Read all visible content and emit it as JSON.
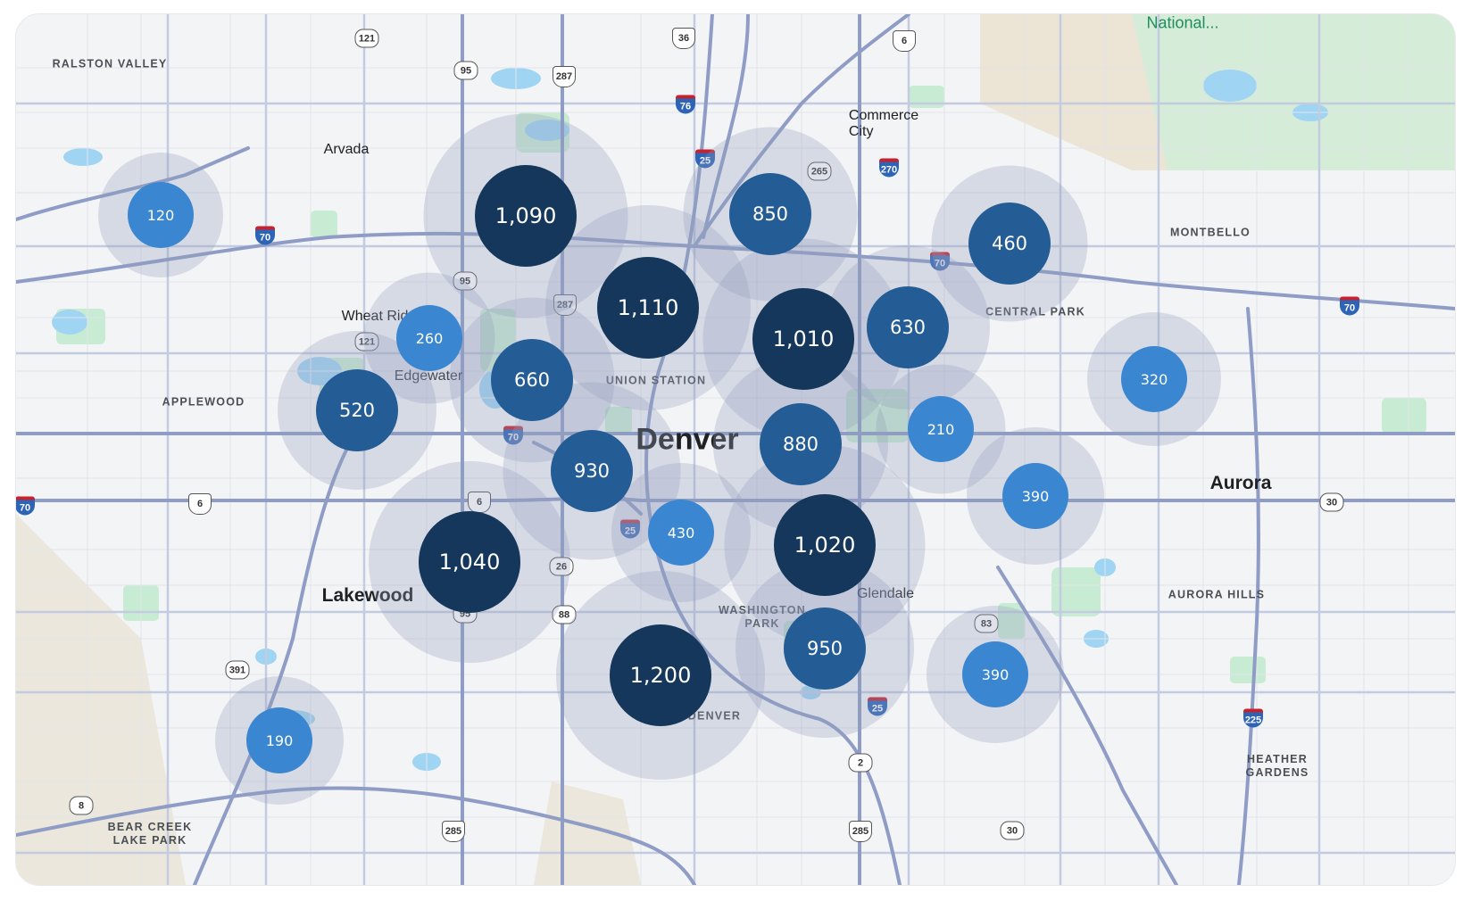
{
  "colors": {
    "cluster_small": "#3a86d1",
    "cluster_medium": "#245c95",
    "cluster_large": "#14375b",
    "halo": "rgba(148,160,190,0.30)",
    "park": "#c7ebd3",
    "water": "#9fd4f2",
    "road": "#9aa8cc",
    "background": "#f3f4f6"
  },
  "clusters": [
    {
      "label": "120",
      "value": 120
    },
    {
      "label": "1,090",
      "value": 1090
    },
    {
      "label": "850",
      "value": 850
    },
    {
      "label": "460",
      "value": 460
    },
    {
      "label": "1,110",
      "value": 1110
    },
    {
      "label": "1,010",
      "value": 1010
    },
    {
      "label": "630",
      "value": 630
    },
    {
      "label": "260",
      "value": 260
    },
    {
      "label": "660",
      "value": 660
    },
    {
      "label": "520",
      "value": 520
    },
    {
      "label": "320",
      "value": 320
    },
    {
      "label": "880",
      "value": 880
    },
    {
      "label": "210",
      "value": 210
    },
    {
      "label": "930",
      "value": 930
    },
    {
      "label": "390",
      "value": 390
    },
    {
      "label": "430",
      "value": 430
    },
    {
      "label": "1,020",
      "value": 1020
    },
    {
      "label": "1,040",
      "value": 1040
    },
    {
      "label": "950",
      "value": 950
    },
    {
      "label": "1,200",
      "value": 1200
    },
    {
      "label": "390",
      "value": 390
    },
    {
      "label": "190",
      "value": 190
    }
  ],
  "places": {
    "denver": "Denver",
    "ralston_valley": "RALSTON VALLEY",
    "arvada": "Arvada",
    "commerce_city": "Commerce\nCity",
    "national": "National...",
    "montbello": "MONTBELLO",
    "central_park": "CENTRAL PARK",
    "wheat_ridge": "Wheat Rid",
    "edgewater": "Edgewater",
    "applewood": "APPLEWOOD",
    "union_station": "UNION STATION",
    "aurora": "Aurora",
    "lakewood": "Lakewood",
    "washington_park": "WASHINGTON\nPARK",
    "glendale": "Glendale",
    "aurora_hills": "AURORA HILLS",
    "south_denver": "H DENVER",
    "heather_gardens": "HEATHER\nGARDENS",
    "bear_creek": "BEAR CREEK\nLAKE PARK"
  },
  "shields": [
    {
      "label": "121",
      "type": "state"
    },
    {
      "label": "36",
      "type": "us"
    },
    {
      "label": "6",
      "type": "us"
    },
    {
      "label": "95",
      "type": "state"
    },
    {
      "label": "287",
      "type": "us"
    },
    {
      "label": "76",
      "type": "interstate"
    },
    {
      "label": "25",
      "type": "interstate"
    },
    {
      "label": "265",
      "type": "state"
    },
    {
      "label": "270",
      "type": "interstate"
    },
    {
      "label": "70",
      "type": "interstate"
    },
    {
      "label": "70",
      "type": "interstate"
    },
    {
      "label": "70",
      "type": "interstate"
    },
    {
      "label": "95",
      "type": "state"
    },
    {
      "label": "287",
      "type": "us"
    },
    {
      "label": "121",
      "type": "state"
    },
    {
      "label": "70",
      "type": "interstate"
    },
    {
      "label": "6",
      "type": "us"
    },
    {
      "label": "6",
      "type": "us"
    },
    {
      "label": "25",
      "type": "interstate"
    },
    {
      "label": "26",
      "type": "state"
    },
    {
      "label": "95",
      "type": "state"
    },
    {
      "label": "88",
      "type": "state"
    },
    {
      "label": "83",
      "type": "state"
    },
    {
      "label": "30",
      "type": "state"
    },
    {
      "label": "391",
      "type": "state"
    },
    {
      "label": "25",
      "type": "interstate"
    },
    {
      "label": "225",
      "type": "interstate"
    },
    {
      "label": "2",
      "type": "state"
    },
    {
      "label": "8",
      "type": "state"
    },
    {
      "label": "285",
      "type": "us"
    },
    {
      "label": "285",
      "type": "us"
    },
    {
      "label": "30",
      "type": "state"
    },
    {
      "label": "70",
      "type": "interstate"
    }
  ]
}
